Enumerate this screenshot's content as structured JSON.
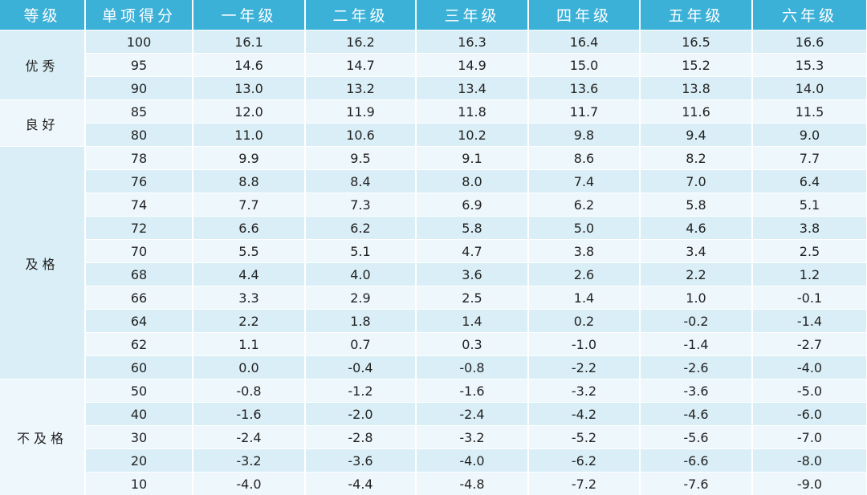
{
  "table": {
    "headers": [
      "等级",
      "单项得分",
      "一年级",
      "二年级",
      "三年级",
      "四年级",
      "五年级",
      "六年级"
    ],
    "groups": [
      {
        "label": "优秀",
        "rows": [
          [
            "100",
            "16.1",
            "16.2",
            "16.3",
            "16.4",
            "16.5",
            "16.6"
          ],
          [
            "95",
            "14.6",
            "14.7",
            "14.9",
            "15.0",
            "15.2",
            "15.3"
          ],
          [
            "90",
            "13.0",
            "13.2",
            "13.4",
            "13.6",
            "13.8",
            "14.0"
          ]
        ]
      },
      {
        "label": "良好",
        "rows": [
          [
            "85",
            "12.0",
            "11.9",
            "11.8",
            "11.7",
            "11.6",
            "11.5"
          ],
          [
            "80",
            "11.0",
            "10.6",
            "10.2",
            "9.8",
            "9.4",
            "9.0"
          ]
        ]
      },
      {
        "label": "及格",
        "rows": [
          [
            "78",
            "9.9",
            "9.5",
            "9.1",
            "8.6",
            "8.2",
            "7.7"
          ],
          [
            "76",
            "8.8",
            "8.4",
            "8.0",
            "7.4",
            "7.0",
            "6.4"
          ],
          [
            "74",
            "7.7",
            "7.3",
            "6.9",
            "6.2",
            "5.8",
            "5.1"
          ],
          [
            "72",
            "6.6",
            "6.2",
            "5.8",
            "5.0",
            "4.6",
            "3.8"
          ],
          [
            "70",
            "5.5",
            "5.1",
            "4.7",
            "3.8",
            "3.4",
            "2.5"
          ],
          [
            "68",
            "4.4",
            "4.0",
            "3.6",
            "2.6",
            "2.2",
            "1.2"
          ],
          [
            "66",
            "3.3",
            "2.9",
            "2.5",
            "1.4",
            "1.0",
            "-0.1"
          ],
          [
            "64",
            "2.2",
            "1.8",
            "1.4",
            "0.2",
            "-0.2",
            "-1.4"
          ],
          [
            "62",
            "1.1",
            "0.7",
            "0.3",
            "-1.0",
            "-1.4",
            "-2.7"
          ],
          [
            "60",
            "0.0",
            "-0.4",
            "-0.8",
            "-2.2",
            "-2.6",
            "-4.0"
          ]
        ]
      },
      {
        "label": "不及格",
        "rows": [
          [
            "50",
            "-0.8",
            "-1.2",
            "-1.6",
            "-3.2",
            "-3.6",
            "-5.0"
          ],
          [
            "40",
            "-1.6",
            "-2.0",
            "-2.4",
            "-4.2",
            "-4.6",
            "-6.0"
          ],
          [
            "30",
            "-2.4",
            "-2.8",
            "-3.2",
            "-5.2",
            "-5.6",
            "-7.0"
          ],
          [
            "20",
            "-3.2",
            "-3.6",
            "-4.0",
            "-6.2",
            "-6.6",
            "-8.0"
          ],
          [
            "10",
            "-4.0",
            "-4.4",
            "-4.8",
            "-7.2",
            "-7.6",
            "-9.0"
          ]
        ]
      }
    ]
  }
}
